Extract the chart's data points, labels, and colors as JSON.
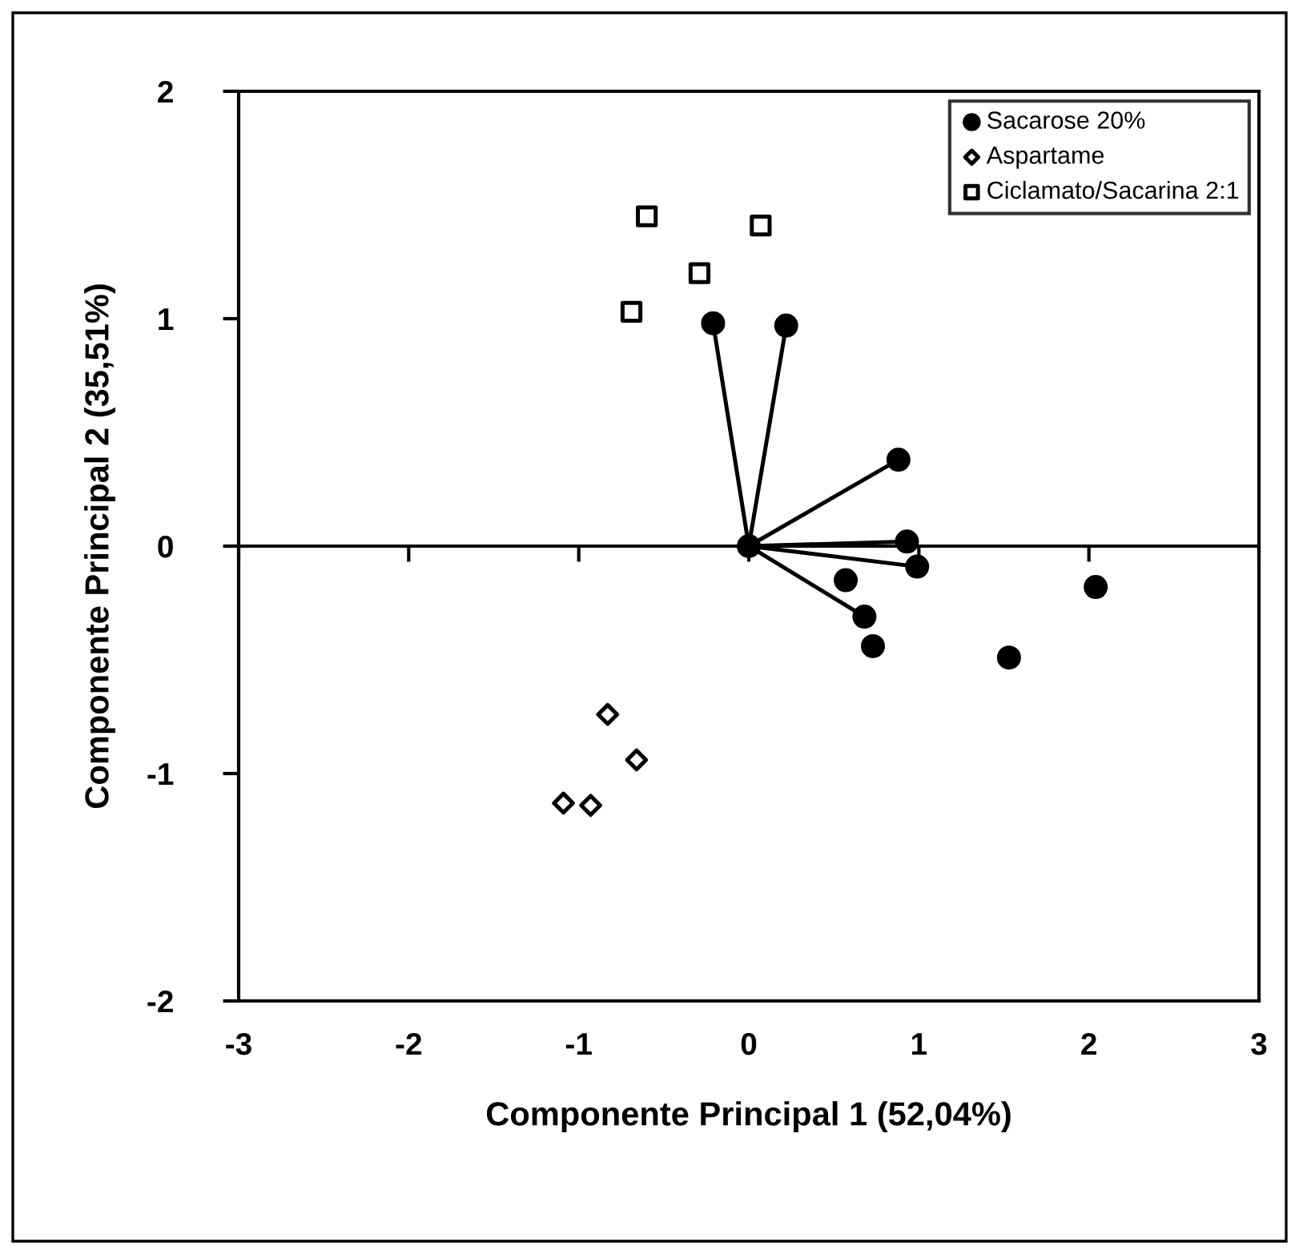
{
  "chart_data": {
    "type": "scatter",
    "xlabel": "Componente Principal 1 (52,04%)",
    "ylabel": "Componente Principal 2 (35,51%)",
    "xlim": [
      -3,
      3
    ],
    "ylim": [
      -2,
      2
    ],
    "xticks": [
      -3,
      -2,
      -1,
      0,
      1,
      2,
      3
    ],
    "yticks": [
      -2,
      -1,
      0,
      1,
      2
    ],
    "grid": false,
    "legend": "top right",
    "ref_lines": [
      {
        "axis": "y",
        "value": 0,
        "color": "#000000"
      }
    ],
    "series": [
      {
        "type": "line",
        "color": "#000000",
        "marker": "none",
        "line_style": "solid",
        "x": [
          0,
          -0.21
        ],
        "values": [
          0,
          0.98
        ]
      },
      {
        "type": "line",
        "color": "#000000",
        "marker": "none",
        "line_style": "solid",
        "x": [
          0,
          0.22
        ],
        "values": [
          0,
          0.97
        ]
      },
      {
        "type": "line",
        "color": "#000000",
        "marker": "none",
        "line_style": "solid",
        "x": [
          0,
          0.88
        ],
        "values": [
          0,
          0.38
        ]
      },
      {
        "type": "line",
        "color": "#000000",
        "marker": "none",
        "line_style": "solid",
        "x": [
          0,
          0.93
        ],
        "values": [
          0,
          0.02
        ]
      },
      {
        "type": "line",
        "color": "#000000",
        "marker": "none",
        "line_style": "solid",
        "x": [
          0,
          0.99
        ],
        "values": [
          0,
          -0.09
        ]
      },
      {
        "type": "line",
        "color": "#000000",
        "marker": "none",
        "line_style": "solid",
        "x": [
          0,
          0.68
        ],
        "values": [
          0,
          -0.31
        ]
      },
      {
        "name": "Sacarose 20%",
        "color": "#000000",
        "marker": "circle",
        "x": [
          0,
          -0.21,
          0.22,
          0.88,
          0.93,
          0.99,
          0.57,
          0.68,
          0.73,
          2.04,
          1.53
        ],
        "values": [
          0,
          0.98,
          0.97,
          0.38,
          0.02,
          -0.09,
          -0.15,
          -0.31,
          -0.44,
          -0.18,
          -0.49
        ]
      },
      {
        "name": "Aspartame",
        "color": "#000000",
        "marker": "diamond",
        "x": [
          -0.83,
          -0.66,
          -1.09,
          -0.93
        ],
        "values": [
          -0.74,
          -0.94,
          -1.13,
          -1.14
        ]
      },
      {
        "name": "Ciclamato/Sacarina 2:1",
        "color": "#000000",
        "marker": "square",
        "x": [
          -0.6,
          0.07,
          -0.29,
          -0.69
        ],
        "values": [
          1.45,
          1.41,
          1.2,
          1.03
        ]
      }
    ]
  }
}
